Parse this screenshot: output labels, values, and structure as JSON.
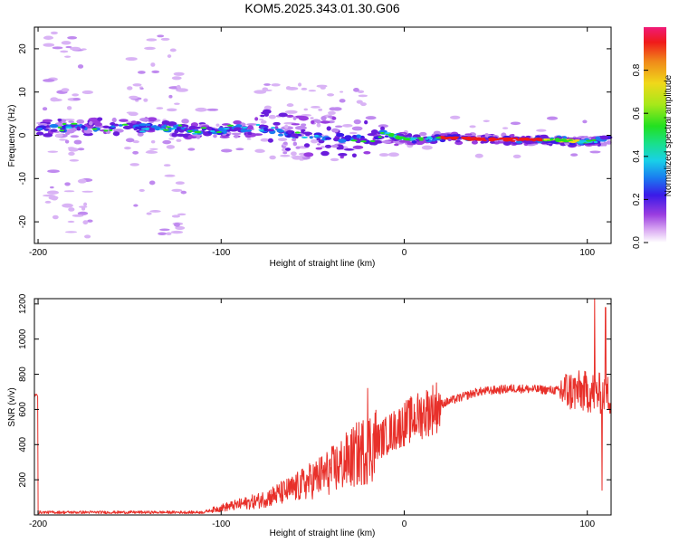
{
  "title": "KOM5.2025.343.01.30.G06",
  "chart_data": [
    {
      "type": "heatmap",
      "xlabel": "Height of straight line (km)",
      "ylabel": "Frequency (Hz)",
      "xlim": [
        -202,
        113
      ],
      "ylim": [
        -25,
        25
      ],
      "xticks": [
        -200,
        -100,
        0,
        100
      ],
      "yticks": [
        -20,
        -10,
        0,
        10,
        20
      ],
      "colorbar": {
        "label": "Normalized spectral amplitude",
        "range": [
          0,
          1
        ],
        "ticks": [
          0.0,
          0.2,
          0.4,
          0.6,
          0.8
        ],
        "tick_labels": [
          "0.0",
          "0.2",
          "0.4",
          "0.6",
          "0.8"
        ],
        "colormap": "rainbow"
      },
      "ridge": {
        "description_points": [
          [
            -200,
            1.5
          ],
          [
            -150,
            2
          ],
          [
            -100,
            1
          ],
          [
            -80,
            2
          ],
          [
            -60,
            0
          ],
          [
            -20,
            -1
          ],
          [
            -10,
            0.5
          ],
          [
            0,
            -1
          ],
          [
            20,
            -0.5
          ],
          [
            50,
            -1
          ],
          [
            80,
            -1
          ],
          [
            100,
            -1.5
          ],
          [
            112,
            -1
          ]
        ]
      }
    },
    {
      "type": "line",
      "xlabel": "Height of straight line (km)",
      "ylabel": "SNR (v/v)",
      "xlim": [
        -202,
        113
      ],
      "ylim": [
        0,
        1230
      ],
      "xticks": [
        -200,
        -100,
        0,
        100
      ],
      "yticks": [
        200,
        400,
        600,
        800,
        1000,
        1200
      ],
      "color": "#e8302a",
      "series_shape": [
        [
          -200,
          15
        ],
        [
          -110,
          15
        ],
        [
          -100,
          40
        ],
        [
          -80,
          80
        ],
        [
          -60,
          150
        ],
        [
          -40,
          250
        ],
        [
          -20,
          380
        ],
        [
          0,
          520
        ],
        [
          20,
          630
        ],
        [
          40,
          700
        ],
        [
          60,
          720
        ],
        [
          80,
          710
        ],
        [
          100,
          700
        ],
        [
          113,
          680
        ]
      ],
      "spikes": [
        [
          -20,
          720
        ],
        [
          104,
          1230
        ],
        [
          108,
          140
        ],
        [
          110,
          1180
        ]
      ]
    }
  ]
}
